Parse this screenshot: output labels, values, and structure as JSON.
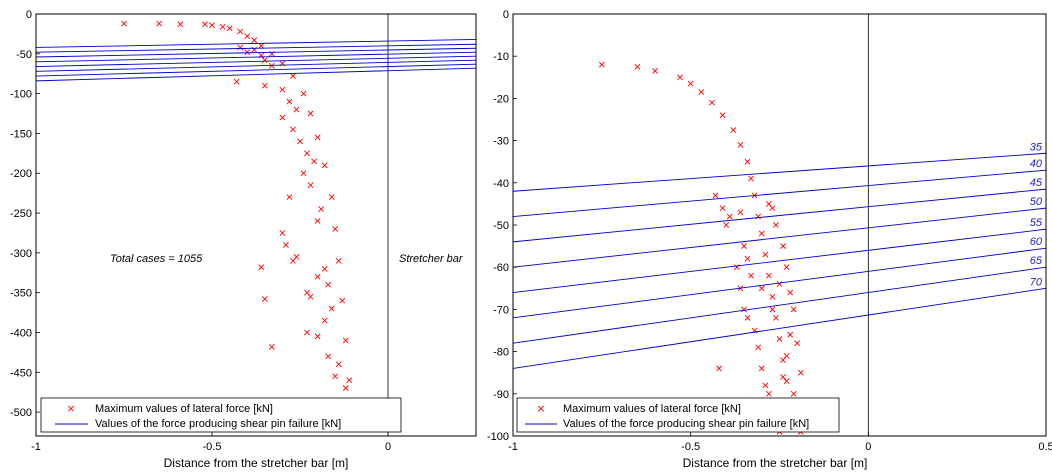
{
  "chart_data": [
    {
      "type": "scatter",
      "xlabel": "Distance from the stretcher bar [m]",
      "ylabel": "",
      "xlim": [
        -1,
        0.25
      ],
      "ylim": [
        -530,
        0
      ],
      "xticks": [
        -1,
        -0.5,
        0
      ],
      "yticks": [
        0,
        -50,
        -100,
        -150,
        -200,
        -250,
        -300,
        -350,
        -400,
        -450,
        -500
      ],
      "grid": false,
      "annotations": [
        "Total cases = 1055",
        "Stretcher bar"
      ],
      "legend": {
        "placement": "bottom-left",
        "entries": [
          "Maximum values of lateral force [kN]",
          "Values of the force producing shear pin failure [kN]"
        ]
      },
      "series": [
        {
          "name": "Maximum values of lateral force [kN]",
          "kind": "scatter",
          "color": "#ff0000",
          "marker": "x",
          "points": [
            [
              -0.75,
              -12
            ],
            [
              -0.65,
              -12
            ],
            [
              -0.59,
              -13
            ],
            [
              -0.52,
              -13
            ],
            [
              -0.5,
              -14
            ],
            [
              -0.47,
              -16
            ],
            [
              -0.45,
              -18
            ],
            [
              -0.42,
              -22
            ],
            [
              -0.4,
              -28
            ],
            [
              -0.38,
              -33
            ],
            [
              -0.36,
              -40
            ],
            [
              -0.33,
              -50
            ],
            [
              -0.3,
              -62
            ],
            [
              -0.27,
              -78
            ],
            [
              -0.24,
              -100
            ],
            [
              -0.22,
              -125
            ],
            [
              -0.2,
              -155
            ],
            [
              -0.18,
              -190
            ],
            [
              -0.16,
              -230
            ],
            [
              -0.15,
              -270
            ],
            [
              -0.14,
              -310
            ],
            [
              -0.13,
              -360
            ],
            [
              -0.12,
              -410
            ],
            [
              -0.11,
              -460
            ],
            [
              -0.1,
              -520
            ],
            [
              -0.42,
              -42
            ],
            [
              -0.4,
              -48
            ],
            [
              -0.38,
              -45
            ],
            [
              -0.36,
              -52
            ],
            [
              -0.35,
              -58
            ],
            [
              -0.33,
              -65
            ],
            [
              -0.43,
              -85
            ],
            [
              -0.35,
              -90
            ],
            [
              -0.3,
              -95
            ],
            [
              -0.28,
              -110
            ],
            [
              -0.26,
              -120
            ],
            [
              -0.3,
              -130
            ],
            [
              -0.27,
              -145
            ],
            [
              -0.25,
              -160
            ],
            [
              -0.23,
              -175
            ],
            [
              -0.21,
              -185
            ],
            [
              -0.24,
              -200
            ],
            [
              -0.22,
              -215
            ],
            [
              -0.28,
              -230
            ],
            [
              -0.19,
              -245
            ],
            [
              -0.2,
              -260
            ],
            [
              -0.3,
              -275
            ],
            [
              -0.29,
              -290
            ],
            [
              -0.26,
              -305
            ],
            [
              -0.27,
              -310
            ],
            [
              -0.18,
              -320
            ],
            [
              -0.36,
              -318
            ],
            [
              -0.2,
              -330
            ],
            [
              -0.17,
              -340
            ],
            [
              -0.23,
              -350
            ],
            [
              -0.22,
              -355
            ],
            [
              -0.35,
              -358
            ],
            [
              -0.16,
              -370
            ],
            [
              -0.18,
              -385
            ],
            [
              -0.23,
              -400
            ],
            [
              -0.2,
              -405
            ],
            [
              -0.33,
              -418
            ],
            [
              -0.17,
              -430
            ],
            [
              -0.14,
              -440
            ],
            [
              -0.15,
              -455
            ],
            [
              -0.12,
              -470
            ],
            [
              -0.13,
              -485
            ],
            [
              -0.11,
              -500
            ]
          ]
        },
        {
          "name": "Values of the force producing shear pin failure [kN]",
          "kind": "lines",
          "color": "#0000cc",
          "lines": [
            {
              "x": [
                -1,
                0.25
              ],
              "y": [
                -42,
                -32
              ]
            },
            {
              "x": [
                -1,
                0.25
              ],
              "y": [
                -48,
                -38
              ]
            },
            {
              "x": [
                -1,
                0.25
              ],
              "y": [
                -54,
                -43
              ]
            },
            {
              "x": [
                -1,
                0.25
              ],
              "y": [
                -60,
                -48
              ]
            },
            {
              "x": [
                -1,
                0.25
              ],
              "y": [
                -66,
                -53
              ]
            },
            {
              "x": [
                -1,
                0.25
              ],
              "y": [
                -72,
                -58
              ]
            },
            {
              "x": [
                -1,
                0.25
              ],
              "y": [
                -78,
                -63
              ]
            },
            {
              "x": [
                -1,
                0.25
              ],
              "y": [
                -84,
                -68
              ]
            }
          ]
        }
      ]
    },
    {
      "type": "scatter",
      "xlabel": "Distance from the stretcher bar [m]",
      "ylabel": "",
      "xlim": [
        -1,
        0.5
      ],
      "ylim": [
        -100,
        0
      ],
      "xticks": [
        -1,
        -0.5,
        0,
        0.5
      ],
      "yticks": [
        0,
        -10,
        -20,
        -30,
        -40,
        -50,
        -60,
        -70,
        -80,
        -90,
        -100
      ],
      "grid": false,
      "legend": {
        "placement": "bottom-left",
        "entries": [
          "Maximum values of lateral force [kN]",
          "Values of the force producing shear pin failure [kN]"
        ]
      },
      "series": [
        {
          "name": "Maximum values of lateral force [kN]",
          "kind": "scatter",
          "color": "#ff0000",
          "marker": "x",
          "points": [
            [
              -0.75,
              -12
            ],
            [
              -0.65,
              -12.5
            ],
            [
              -0.6,
              -13.5
            ],
            [
              -0.53,
              -15
            ],
            [
              -0.5,
              -16.5
            ],
            [
              -0.47,
              -18.5
            ],
            [
              -0.44,
              -21
            ],
            [
              -0.41,
              -24
            ],
            [
              -0.38,
              -27.5
            ],
            [
              -0.36,
              -31
            ],
            [
              -0.34,
              -35
            ],
            [
              -0.33,
              -39
            ],
            [
              -0.32,
              -43
            ],
            [
              -0.31,
              -48
            ],
            [
              -0.3,
              -52
            ],
            [
              -0.29,
              -57
            ],
            [
              -0.28,
              -62
            ],
            [
              -0.27,
              -67
            ],
            [
              -0.26,
              -72
            ],
            [
              -0.25,
              -77
            ],
            [
              -0.24,
              -82
            ],
            [
              -0.23,
              -87
            ],
            [
              -0.22,
              -92
            ],
            [
              -0.21,
              -97
            ],
            [
              -0.43,
              -43
            ],
            [
              -0.41,
              -46
            ],
            [
              -0.4,
              -50
            ],
            [
              -0.39,
              -48
            ],
            [
              -0.36,
              -47
            ],
            [
              -0.35,
              -55
            ],
            [
              -0.34,
              -58
            ],
            [
              -0.33,
              -62
            ],
            [
              -0.3,
              -65
            ],
            [
              -0.27,
              -70
            ],
            [
              -0.37,
              -60
            ],
            [
              -0.36,
              -65
            ],
            [
              -0.35,
              -70
            ],
            [
              -0.34,
              -72
            ],
            [
              -0.32,
              -75
            ],
            [
              -0.31,
              -79
            ],
            [
              -0.3,
              -84
            ],
            [
              -0.29,
              -88
            ],
            [
              -0.28,
              -90
            ],
            [
              -0.27,
              -93
            ],
            [
              -0.26,
              -96
            ],
            [
              -0.25,
              -99
            ],
            [
              -0.24,
              -86
            ],
            [
              -0.23,
              -81
            ],
            [
              -0.22,
              -76
            ],
            [
              -0.2,
              -78
            ],
            [
              -0.19,
              -85
            ],
            [
              -0.21,
              -90
            ],
            [
              -0.2,
              -94
            ],
            [
              -0.19,
              -99
            ],
            [
              -0.22,
              -66
            ],
            [
              -0.23,
              -60
            ],
            [
              -0.24,
              -55
            ],
            [
              -0.26,
              -50
            ],
            [
              -0.27,
              -46
            ],
            [
              -0.28,
              -45
            ],
            [
              -0.42,
              -84
            ],
            [
              -0.18,
              -92
            ],
            [
              -0.21,
              -70
            ],
            [
              -0.25,
              -64
            ]
          ]
        },
        {
          "name": "Values of the force producing shear pin failure [kN]",
          "kind": "lines",
          "color": "#0000cc",
          "lines": [
            {
              "label": "35",
              "x": [
                -1,
                0.5
              ],
              "y": [
                -42,
                -33
              ]
            },
            {
              "label": "40",
              "x": [
                -1,
                0.5
              ],
              "y": [
                -48,
                -37
              ]
            },
            {
              "label": "45",
              "x": [
                -1,
                0.5
              ],
              "y": [
                -54,
                -41.5
              ]
            },
            {
              "label": "50",
              "x": [
                -1,
                0.5
              ],
              "y": [
                -60,
                -46
              ]
            },
            {
              "label": "55",
              "x": [
                -1,
                0.5
              ],
              "y": [
                -66,
                -51
              ]
            },
            {
              "label": "60",
              "x": [
                -1,
                0.5
              ],
              "y": [
                -72,
                -55.5
              ]
            },
            {
              "label": "65",
              "x": [
                -1,
                0.5
              ],
              "y": [
                -78,
                -60
              ]
            },
            {
              "label": "70",
              "x": [
                -1,
                0.5
              ],
              "y": [
                -84,
                -65
              ]
            }
          ]
        }
      ]
    }
  ]
}
